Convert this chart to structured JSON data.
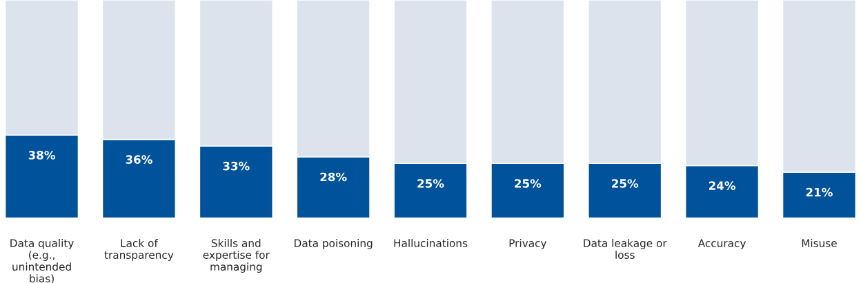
{
  "chart_data": {
    "type": "bar",
    "stacked": true,
    "tick_labels": "x",
    "ylim": [
      0,
      100
    ],
    "grid": false,
    "legend": false,
    "categories": [
      "Data quality\n(e.g.,\nunintended\nbias)",
      "Lack of\ntransparency",
      "Skills and\nexpertise for\nmanaging",
      "Data poisoning",
      "Hallucinations",
      "Privacy",
      "Data leakage or\nloss",
      "Accuracy",
      "Misuse"
    ],
    "series": [
      {
        "color": "#00529b",
        "values": [
          38,
          36,
          33,
          28,
          25,
          25,
          25,
          24,
          21
        ],
        "value_labels": [
          "38%",
          "36%",
          "33%",
          "28%",
          "25%",
          "25%",
          "25%",
          "24%",
          "21%"
        ]
      },
      {
        "color": "#dce3ec",
        "values": [
          62,
          64,
          67,
          72,
          75,
          75,
          75,
          76,
          79
        ]
      }
    ]
  }
}
